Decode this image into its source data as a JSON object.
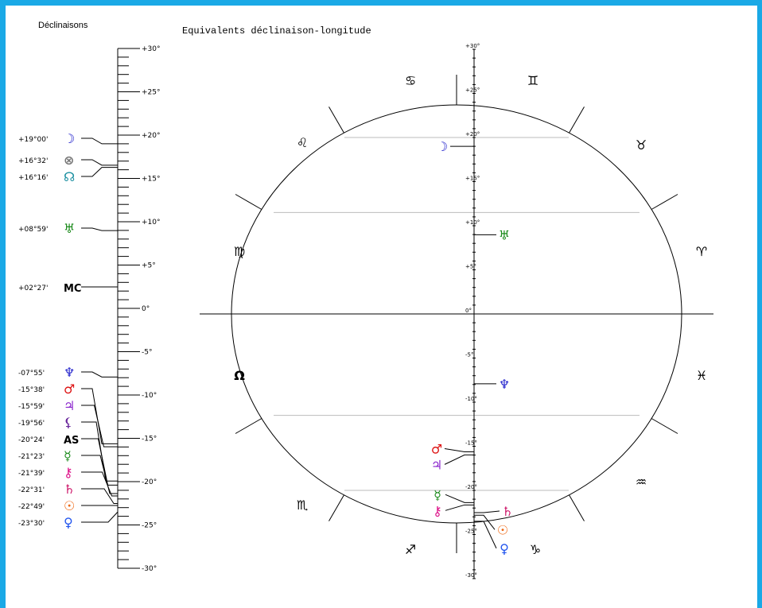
{
  "left_panel": {
    "title": "Déclinaisons",
    "scale_labels": [
      "+30°",
      "+25°",
      "+20°",
      "+15°",
      "+10°",
      "+5°",
      "0°",
      "-5°",
      "-10°",
      "-15°",
      "-20°",
      "-25°",
      "-30°"
    ],
    "bodies": [
      {
        "id": "moon",
        "value": "+19°00'",
        "decl": 19.0,
        "glyph": "☽",
        "color": "#2222cc"
      },
      {
        "id": "part-of-fortune",
        "value": "+16°32'",
        "decl": 16.53,
        "glyph": "⊗",
        "color": "#777777"
      },
      {
        "id": "north-node",
        "value": "+16°16'",
        "decl": 16.27,
        "glyph": "☊",
        "color": "#1a8fa0"
      },
      {
        "id": "uranus",
        "value": "+08°59'",
        "decl": 8.98,
        "glyph": "♅",
        "color": "#1a8a1a"
      },
      {
        "id": "midheaven",
        "value": "+02°27'",
        "decl": 2.45,
        "glyph": "MC",
        "color": "#000000"
      },
      {
        "id": "neptune",
        "value": "-07°55'",
        "decl": -7.92,
        "glyph": "♆",
        "color": "#2222cc"
      },
      {
        "id": "mars",
        "value": "-15°38'",
        "decl": -15.63,
        "glyph": "♂",
        "color": "#dd1111"
      },
      {
        "id": "jupiter",
        "value": "-15°59'",
        "decl": -15.98,
        "glyph": "♃",
        "color": "#8822cc"
      },
      {
        "id": "lilith",
        "value": "-19°56'",
        "decl": -19.93,
        "glyph": "⚸",
        "color": "#662299"
      },
      {
        "id": "ascendant",
        "value": "-20°24'",
        "decl": -20.4,
        "glyph": "AS",
        "color": "#000000"
      },
      {
        "id": "mercury",
        "value": "-21°23'",
        "decl": -21.38,
        "glyph": "☿",
        "color": "#1a8a1a"
      },
      {
        "id": "chiron",
        "value": "-21°39'",
        "decl": -21.65,
        "glyph": "⚷",
        "color": "#dd1188"
      },
      {
        "id": "saturn",
        "value": "-22°31'",
        "decl": -22.52,
        "glyph": "♄",
        "color": "#cc1166"
      },
      {
        "id": "sun",
        "value": "-22°49'",
        "decl": -22.82,
        "glyph": "☉",
        "color": "#ee6611"
      },
      {
        "id": "venus",
        "value": "-23°30'",
        "decl": -23.5,
        "glyph": "♀",
        "color": "#2255ee"
      }
    ]
  },
  "right_panel": {
    "title": "Equivalents déclinaison-longitude",
    "scale_labels": [
      "+30°",
      "+25°",
      "+20°",
      "+15°",
      "+10°",
      "+5°",
      "0°",
      "-5°",
      "-10°",
      "-15°",
      "-20°",
      "-25°",
      "-30°"
    ],
    "signs": [
      {
        "id": "aries",
        "glyph": "♈",
        "color": "#000000"
      },
      {
        "id": "taurus",
        "glyph": "♉",
        "color": "#000000"
      },
      {
        "id": "gemini",
        "glyph": "♊",
        "color": "#000000"
      },
      {
        "id": "cancer",
        "glyph": "♋",
        "color": "#000000"
      },
      {
        "id": "leo",
        "glyph": "♌",
        "color": "#000000"
      },
      {
        "id": "virgo",
        "glyph": "♍",
        "color": "#000000"
      },
      {
        "id": "libra",
        "glyph": "Ω",
        "color": "#000000"
      },
      {
        "id": "scorpio",
        "glyph": "♏",
        "color": "#000000"
      },
      {
        "id": "sagittarius",
        "glyph": "♐",
        "color": "#000000"
      },
      {
        "id": "capricorn",
        "glyph": "♑",
        "color": "#000000"
      },
      {
        "id": "aquarius",
        "glyph": "♒",
        "color": "#000000"
      },
      {
        "id": "pisces",
        "glyph": "♓",
        "color": "#000000"
      }
    ],
    "markers": [
      {
        "id": "moon",
        "glyph": "☽",
        "color": "#2222cc",
        "decl": 19.0,
        "side": "left"
      },
      {
        "id": "uranus",
        "glyph": "♅",
        "color": "#1a8a1a",
        "decl": 8.98,
        "side": "right"
      },
      {
        "id": "neptune",
        "glyph": "♆",
        "color": "#2222cc",
        "decl": -7.92,
        "side": "right"
      },
      {
        "id": "mars",
        "glyph": "♂",
        "color": "#dd1111",
        "decl": -15.63,
        "side": "left"
      },
      {
        "id": "jupiter",
        "glyph": "♃",
        "color": "#8822cc",
        "decl": -15.98,
        "side": "left"
      },
      {
        "id": "mercury",
        "glyph": "☿",
        "color": "#1a8a1a",
        "decl": -21.38,
        "side": "left"
      },
      {
        "id": "chiron",
        "glyph": "⚷",
        "color": "#dd1188",
        "decl": -21.65,
        "side": "left"
      },
      {
        "id": "saturn",
        "glyph": "♄",
        "color": "#cc1166",
        "decl": -22.52,
        "side": "right"
      },
      {
        "id": "sun",
        "glyph": "☉",
        "color": "#ee6611",
        "decl": -22.82,
        "side": "right"
      },
      {
        "id": "venus",
        "glyph": "♀",
        "color": "#2255ee",
        "decl": -23.5,
        "side": "right"
      }
    ],
    "horizontal_lines_decl": [
      20,
      11.5,
      0,
      -11.5,
      -20
    ]
  },
  "colors": {
    "frame": "#1aa9e6",
    "circle": "#000000",
    "grid_lines": "#bbbbbb"
  }
}
